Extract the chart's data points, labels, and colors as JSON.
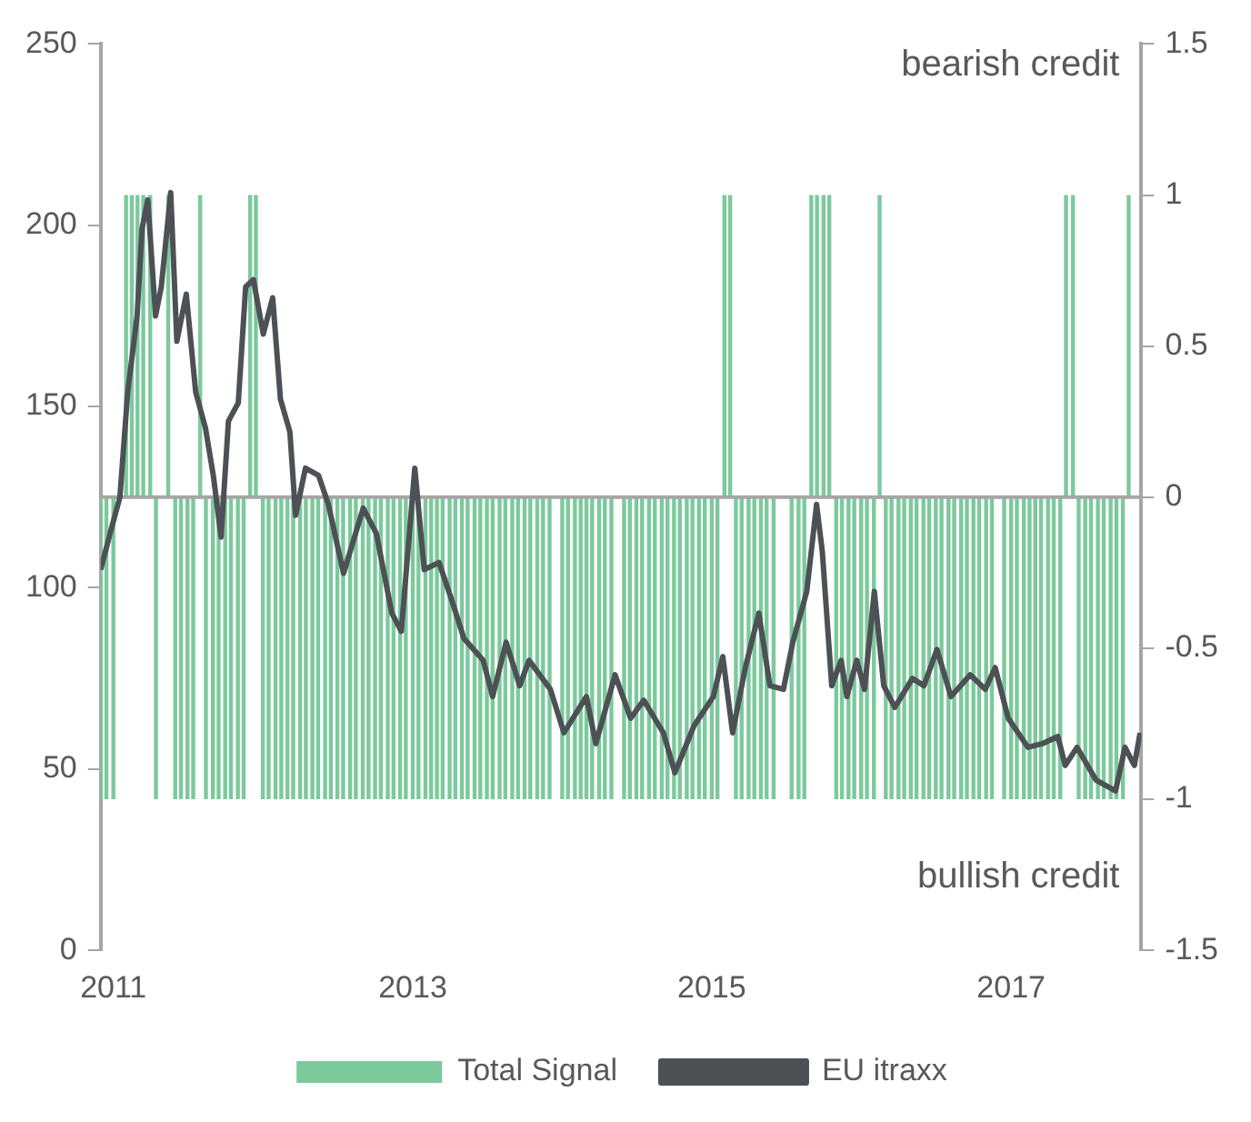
{
  "chart_data": {
    "type": "bar",
    "x": [
      "2010-12-01",
      "2010-12-15",
      "2011-01-01",
      "2011-01-15",
      "2011-02-01",
      "2011-02-15",
      "2011-03-01",
      "2011-03-15",
      "2011-04-01",
      "2011-04-15",
      "2011-05-01",
      "2011-05-15",
      "2011-06-01",
      "2011-06-15",
      "2011-07-01",
      "2011-07-15",
      "2011-08-01",
      "2011-08-15",
      "2011-09-01",
      "2011-09-15",
      "2011-10-01",
      "2011-10-15",
      "2011-11-01",
      "2011-11-15",
      "2011-12-01",
      "2011-12-15",
      "2012-01-01",
      "2012-01-15",
      "2012-02-01",
      "2012-02-15",
      "2012-03-01",
      "2012-03-15",
      "2012-04-01",
      "2012-04-15",
      "2012-05-01",
      "2012-05-15",
      "2012-06-01",
      "2012-06-15",
      "2012-07-01",
      "2012-07-15",
      "2012-08-01",
      "2012-08-15",
      "2012-09-01",
      "2012-09-15",
      "2012-10-01",
      "2012-10-15",
      "2012-11-01",
      "2012-11-15",
      "2012-12-01",
      "2012-12-15",
      "2013-01-01",
      "2013-01-15",
      "2013-02-01",
      "2013-02-15",
      "2013-03-01",
      "2013-03-15",
      "2013-04-01",
      "2013-04-15",
      "2013-05-01",
      "2013-05-15",
      "2013-06-01",
      "2013-06-15",
      "2013-07-01",
      "2013-07-15",
      "2013-08-01",
      "2013-08-15",
      "2013-09-01",
      "2013-09-15",
      "2013-10-01",
      "2013-10-15",
      "2013-11-01",
      "2013-11-15",
      "2013-12-01",
      "2013-12-15",
      "2014-01-01",
      "2014-01-15",
      "2014-02-01",
      "2014-02-15",
      "2014-03-01",
      "2014-03-15",
      "2014-04-01",
      "2014-04-15",
      "2014-05-01",
      "2014-05-15",
      "2014-06-01",
      "2014-06-15",
      "2014-07-01",
      "2014-07-15",
      "2014-08-01",
      "2014-08-15",
      "2014-09-01",
      "2014-09-15",
      "2014-10-01",
      "2014-10-15",
      "2014-11-01",
      "2014-11-15",
      "2014-12-01",
      "2014-12-15",
      "2015-01-01",
      "2015-01-15",
      "2015-02-01",
      "2015-02-15",
      "2015-03-01",
      "2015-03-15",
      "2015-04-01",
      "2015-04-15",
      "2015-05-01",
      "2015-05-15",
      "2015-06-01",
      "2015-06-15",
      "2015-07-01",
      "2015-07-15",
      "2015-08-01",
      "2015-08-15",
      "2015-09-01",
      "2015-09-15",
      "2015-10-01",
      "2015-10-15",
      "2015-11-01",
      "2015-11-15",
      "2015-12-01",
      "2015-12-15",
      "2016-01-01",
      "2016-01-15",
      "2016-02-01",
      "2016-02-15",
      "2016-03-01",
      "2016-03-15",
      "2016-04-01",
      "2016-04-15",
      "2016-05-01",
      "2016-05-15",
      "2016-06-01",
      "2016-06-15",
      "2016-07-01",
      "2016-07-15",
      "2016-08-01",
      "2016-08-15",
      "2016-09-01",
      "2016-09-15",
      "2016-10-01",
      "2016-10-15",
      "2016-11-01",
      "2016-11-15",
      "2016-12-01",
      "2016-12-15",
      "2017-01-01",
      "2017-01-15",
      "2017-02-01",
      "2017-02-15",
      "2017-03-01",
      "2017-03-15",
      "2017-04-01",
      "2017-04-15",
      "2017-05-01",
      "2017-05-15",
      "2017-06-01",
      "2017-06-15",
      "2017-07-01",
      "2017-07-15",
      "2017-08-01",
      "2017-08-15",
      "2017-09-01",
      "2017-09-15",
      "2017-10-01",
      "2017-10-15"
    ],
    "series": [
      {
        "name": "Total Signal",
        "axis": "y2",
        "color": "#7cc99c",
        "values": [
          -1,
          -1,
          -1,
          null,
          1,
          1,
          1,
          1,
          1,
          -1,
          null,
          1,
          -1,
          -1,
          -1,
          -1,
          1,
          -1,
          -1,
          -1,
          -1,
          -1,
          -1,
          -1,
          1,
          1,
          -1,
          -1,
          -1,
          -1,
          -1,
          -1,
          -1,
          -1,
          -1,
          -1,
          -1,
          -1,
          -1,
          -1,
          -1,
          -1,
          -1,
          -1,
          -1,
          -1,
          -1,
          -1,
          -1,
          -1,
          -1,
          -1,
          -1,
          -1,
          -1,
          -1,
          -1,
          -1,
          -1,
          -1,
          -1,
          -1,
          -1,
          -1,
          -1,
          -1,
          -1,
          -1,
          -1,
          -1,
          -1,
          -1,
          -1,
          null,
          -1,
          -1,
          -1,
          -1,
          -1,
          -1,
          -1,
          -1,
          -1,
          null,
          -1,
          -1,
          -1,
          -1,
          -1,
          -1,
          -1,
          -1,
          -1,
          -1,
          -1,
          -1,
          -1,
          -1,
          -1,
          -1,
          1,
          1,
          -1,
          -1,
          -1,
          -1,
          -1,
          -1,
          -1,
          null,
          null,
          -1,
          -1,
          -1,
          1,
          1,
          1,
          1,
          -1,
          -1,
          -1,
          -1,
          -1,
          -1,
          -1,
          1,
          -1,
          -1,
          -1,
          -1,
          -1,
          -1,
          -1,
          -1,
          -1,
          -1,
          -1,
          -1,
          -1,
          -1,
          -1,
          -1,
          -1,
          -1,
          null,
          -1,
          -1,
          -1,
          -1,
          -1,
          -1,
          -1,
          -1,
          -1,
          -1,
          1,
          1,
          -1,
          -1,
          -1,
          -1,
          -1,
          -1,
          -1,
          -1,
          1
        ]
      },
      {
        "name": "EU itraxx",
        "type": "line",
        "color": "#4d5055",
        "x": [
          "2010-12-01",
          "2010-12-24",
          "2011-01-17",
          "2011-02-05",
          "2011-02-28",
          "2011-03-12",
          "2011-03-26",
          "2011-04-14",
          "2011-04-28",
          "2011-05-21",
          "2011-06-05",
          "2011-06-28",
          "2011-07-21",
          "2011-08-14",
          "2011-09-02",
          "2011-09-21",
          "2011-10-09",
          "2011-11-02",
          "2011-11-20",
          "2011-12-09",
          "2012-01-02",
          "2012-01-25",
          "2012-02-13",
          "2012-03-07",
          "2012-03-21",
          "2012-04-14",
          "2012-05-16",
          "2012-06-09",
          "2012-07-16",
          "2012-09-02",
          "2012-10-04",
          "2012-11-11",
          "2012-12-04",
          "2013-01-06",
          "2013-01-29",
          "2013-03-06",
          "2013-04-08",
          "2013-05-06",
          "2013-06-22",
          "2013-07-15",
          "2013-08-17",
          "2013-09-19",
          "2013-10-12",
          "2013-12-03",
          "2014-01-05",
          "2014-03-01",
          "2014-03-24",
          "2014-05-10",
          "2014-06-17",
          "2014-07-19",
          "2014-09-05",
          "2014-10-03",
          "2014-11-19",
          "2015-01-05",
          "2015-01-28",
          "2015-02-21",
          "2015-03-24",
          "2015-04-26",
          "2015-05-23",
          "2015-06-25",
          "2015-07-18",
          "2015-08-21",
          "2015-09-14",
          "2015-09-28",
          "2015-10-21",
          "2015-11-13",
          "2015-11-27",
          "2015-12-21",
          "2016-01-09",
          "2016-02-02",
          "2016-02-25",
          "2016-03-23",
          "2016-05-05",
          "2016-06-02",
          "2016-07-04",
          "2016-08-07",
          "2016-09-23",
          "2016-10-30",
          "2016-11-23",
          "2016-12-25",
          "2017-02-11",
          "2017-03-18",
          "2017-04-25",
          "2017-05-13",
          "2017-06-11",
          "2017-07-27",
          "2017-09-13",
          "2017-10-06",
          "2017-10-29",
          "2017-11-12"
        ],
        "values": [
          105,
          115,
          125,
          154,
          175,
          199,
          207,
          175,
          183,
          209,
          168,
          181,
          154,
          144,
          131,
          114,
          146,
          151,
          183,
          185,
          170,
          180,
          152,
          143,
          120,
          133,
          131,
          123,
          104,
          122,
          115,
          93,
          88,
          133,
          105,
          107,
          96,
          86,
          80,
          70,
          85,
          73,
          80,
          72,
          60,
          70,
          57,
          76,
          64,
          69,
          60,
          49,
          62,
          70,
          81,
          60,
          78,
          93,
          73,
          72,
          85,
          99,
          123,
          110,
          73,
          80,
          70,
          80,
          72,
          99,
          73,
          67,
          75,
          73,
          83,
          70,
          76,
          72,
          78,
          64,
          56,
          57,
          59,
          51,
          56,
          47,
          44,
          56,
          51,
          60
        ]
      }
    ],
    "xlim": [
      "2010-12-01",
      "2017-11-15"
    ],
    "xticks": [
      "2011",
      "2013",
      "2015",
      "2017"
    ],
    "ylim": [
      0,
      250
    ],
    "yticks": [
      0,
      50,
      100,
      150,
      200,
      250
    ],
    "y2lim": [
      -1.5,
      1.5
    ],
    "y2ticks": [
      -1.5,
      -1,
      -0.5,
      0,
      0.5,
      1,
      1.5
    ],
    "ref_lines": [
      {
        "axis": "y2",
        "value": 0,
        "color": "#a6a6a6"
      }
    ],
    "annotations": [
      "bearish credit",
      "bullish credit"
    ],
    "legend": "bottom",
    "grid": false
  }
}
